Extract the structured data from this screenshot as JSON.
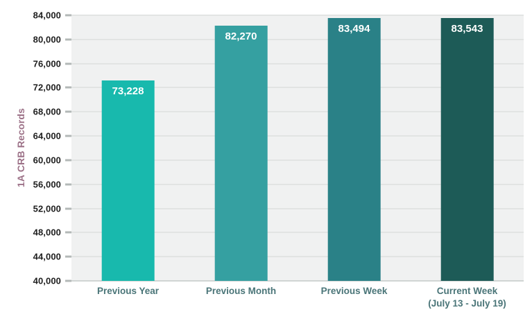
{
  "chart_data": {
    "type": "bar",
    "title": "",
    "xlabel": "",
    "ylabel": "1A CRB Records",
    "categories": [
      {
        "label": "Previous Year",
        "sublabel": ""
      },
      {
        "label": "Previous Month",
        "sublabel": ""
      },
      {
        "label": "Previous Week",
        "sublabel": ""
      },
      {
        "label": "Current Week",
        "sublabel": "(July 13 - July 19)"
      }
    ],
    "values": [
      73228,
      82270,
      83494,
      83543
    ],
    "value_labels": [
      "73,228",
      "82,270",
      "83,494",
      "83,543"
    ],
    "bar_colors": [
      "#18b9ad",
      "#35a0a1",
      "#2a8187",
      "#1d5b57"
    ],
    "ylim": [
      40000,
      84000
    ],
    "ytick_step": 4000,
    "ytick_labels": [
      "84,000",
      "80,000",
      "76,000",
      "72,000",
      "68,000",
      "64,000",
      "60,000",
      "56,000",
      "52,000",
      "48,000",
      "44,000",
      "40,000"
    ],
    "grid": "horizontal",
    "legend": "none"
  },
  "colors": {
    "plot_bg": "#f0f1f1",
    "gridline": "#e2e4e3",
    "bottom_axis_line": "#d0d4d3",
    "tick_mark": "#b3b8b7",
    "ytick_text": "#1e1e1e",
    "xlabel_text": "#4a7578",
    "ylabel_text": "#9d7288",
    "bar_label_text": "#ffffff"
  }
}
